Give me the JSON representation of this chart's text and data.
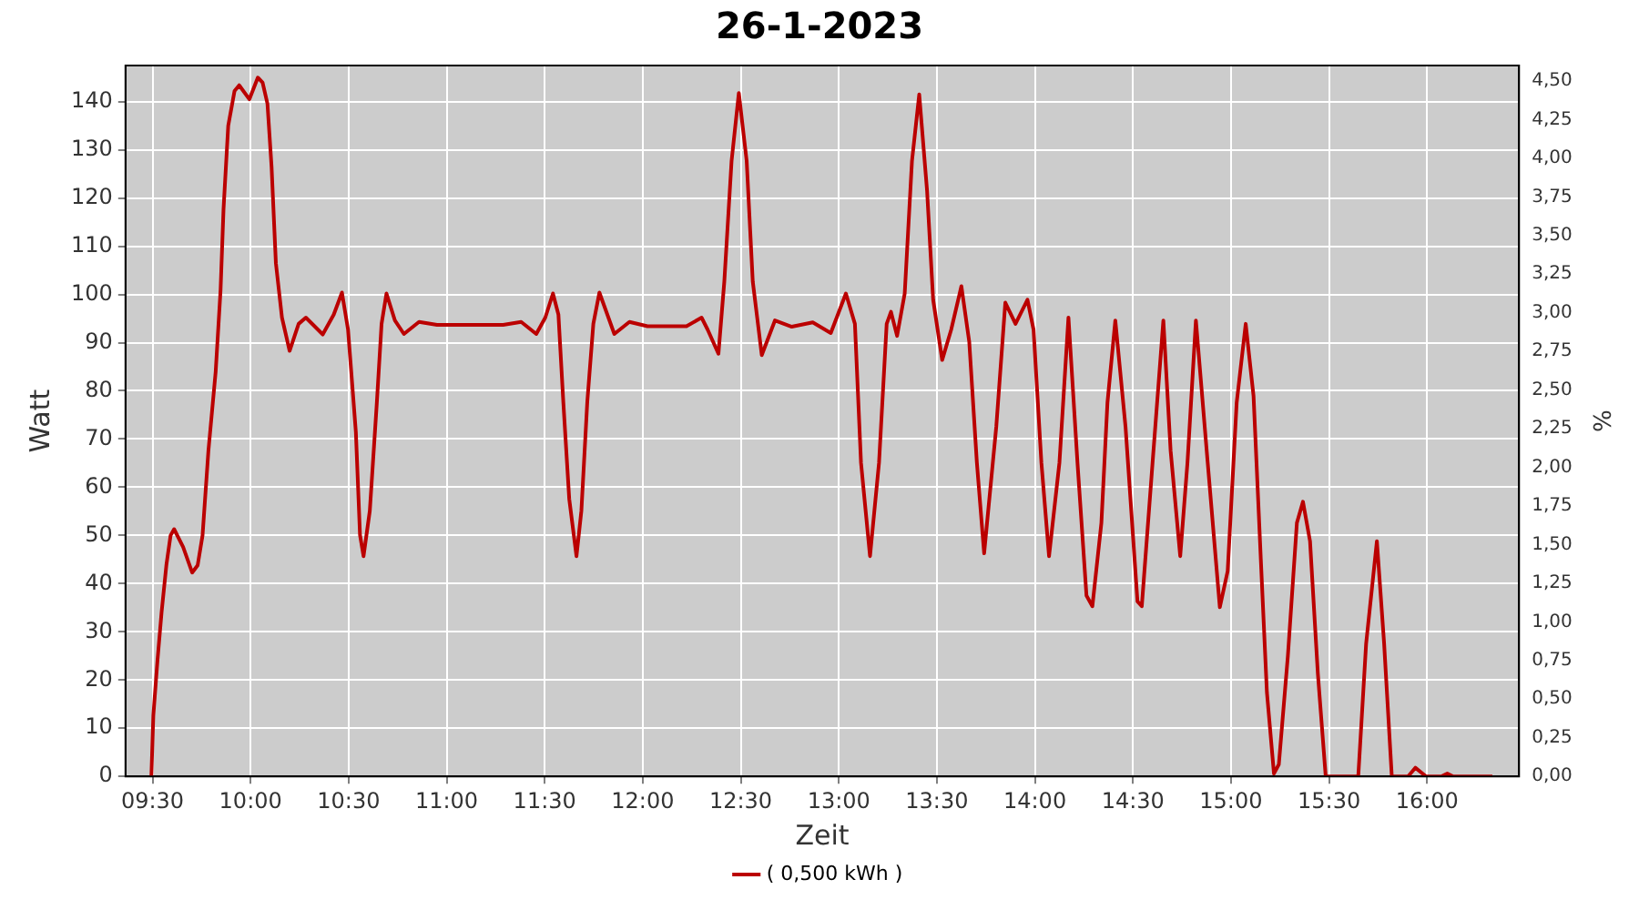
{
  "chart_data": {
    "type": "line",
    "title": "26-1-2023",
    "xlabel": "Zeit",
    "ylabel": "Watt",
    "y2label": "%",
    "xlim": [
      9.362,
      16.469
    ],
    "xticks": [
      {
        "value": 9.5,
        "label": "09:30"
      },
      {
        "value": 10,
        "label": "10:00"
      },
      {
        "value": 10.5,
        "label": "10:30"
      },
      {
        "value": 11,
        "label": "11:00"
      },
      {
        "value": 11.5,
        "label": "11:30"
      },
      {
        "value": 12,
        "label": "12:00"
      },
      {
        "value": 12.5,
        "label": "12:30"
      },
      {
        "value": 13,
        "label": "13:00"
      },
      {
        "value": 13.5,
        "label": "13:30"
      },
      {
        "value": 14,
        "label": "14:00"
      },
      {
        "value": 14.5,
        "label": "14:30"
      },
      {
        "value": 15,
        "label": "15:00"
      },
      {
        "value": 15.5,
        "label": "15:30"
      },
      {
        "value": 16,
        "label": "16:00"
      }
    ],
    "ylim": [
      0,
      147.5
    ],
    "yticks": [
      0,
      10,
      20,
      30,
      40,
      50,
      60,
      70,
      80,
      90,
      100,
      110,
      120,
      130,
      140
    ],
    "y2lim": [
      0,
      4.6
    ],
    "y2ticks": [
      {
        "value": 0,
        "label": "0,00"
      },
      {
        "value": 0.25,
        "label": "0,25"
      },
      {
        "value": 0.5,
        "label": "0,50"
      },
      {
        "value": 0.75,
        "label": "0,75"
      },
      {
        "value": 1,
        "label": "1,00"
      },
      {
        "value": 1.25,
        "label": "1,25"
      },
      {
        "value": 1.5,
        "label": "1,50"
      },
      {
        "value": 1.75,
        "label": "1,75"
      },
      {
        "value": 2,
        "label": "2,00"
      },
      {
        "value": 2.25,
        "label": "2,25"
      },
      {
        "value": 2.5,
        "label": "2,50"
      },
      {
        "value": 2.75,
        "label": "2,75"
      },
      {
        "value": 3,
        "label": "3,00"
      },
      {
        "value": 3.25,
        "label": "3,25"
      },
      {
        "value": 3.5,
        "label": "3,50"
      },
      {
        "value": 3.75,
        "label": "3,75"
      },
      {
        "value": 4,
        "label": "4,00"
      },
      {
        "value": 4.25,
        "label": "4,25"
      },
      {
        "value": 4.5,
        "label": "4,50"
      }
    ],
    "grid": true,
    "legend": "bottom",
    "marker": "none",
    "line_style": "solid",
    "series": [
      {
        "name": "( 0,500 kWh )",
        "color": "#bb0000",
        "x": [
          9.494,
          9.504,
          9.525,
          9.546,
          9.571,
          9.592,
          9.61,
          9.656,
          9.702,
          9.73,
          9.755,
          9.785,
          9.822,
          9.847,
          9.862,
          9.886,
          9.918,
          9.942,
          9.994,
          10.037,
          10.061,
          10.086,
          10.107,
          10.129,
          10.16,
          10.199,
          10.245,
          10.282,
          10.368,
          10.424,
          10.466,
          10.497,
          10.537,
          10.558,
          10.576,
          10.608,
          10.644,
          10.668,
          10.693,
          10.736,
          10.782,
          10.859,
          10.951,
          11.288,
          11.38,
          11.457,
          11.503,
          11.542,
          11.57,
          11.595,
          11.625,
          11.662,
          11.687,
          11.717,
          11.748,
          11.779,
          11.855,
          11.932,
          12.024,
          12.223,
          12.3,
          12.331,
          12.386,
          12.416,
          12.453,
          12.49,
          12.53,
          12.561,
          12.607,
          12.674,
          12.76,
          12.867,
          12.959,
          13.036,
          13.082,
          13.113,
          13.159,
          13.205,
          13.244,
          13.266,
          13.297,
          13.336,
          13.373,
          13.41,
          13.45,
          13.481,
          13.527,
          13.573,
          13.625,
          13.665,
          13.704,
          13.741,
          13.803,
          13.849,
          13.901,
          13.962,
          13.993,
          14.033,
          14.072,
          14.125,
          14.171,
          14.217,
          14.263,
          14.293,
          14.339,
          14.37,
          14.41,
          14.462,
          14.523,
          14.545,
          14.6,
          14.655,
          14.692,
          14.741,
          14.778,
          14.821,
          14.876,
          14.943,
          14.983,
          15.029,
          15.075,
          15.115,
          15.152,
          15.183,
          15.219,
          15.244,
          15.29,
          15.336,
          15.367,
          15.403,
          15.443,
          15.483,
          15.566,
          15.649,
          15.689,
          15.744,
          15.781,
          15.82,
          15.903,
          15.94,
          15.995,
          16.072,
          16.103,
          16.133,
          16.333
        ],
        "values": [
          0,
          12.6,
          24,
          34,
          44,
          50,
          51.3,
          47.6,
          42.3,
          43.8,
          50,
          67.6,
          84,
          101,
          117.7,
          135,
          142.2,
          143.4,
          140.5,
          145,
          144,
          139.6,
          126.5,
          106.5,
          95.2,
          88.3,
          93.9,
          95.2,
          91.7,
          95.8,
          100.4,
          92.7,
          71.4,
          50.1,
          45.7,
          55.1,
          77.6,
          93.9,
          100.2,
          94.6,
          91.8,
          94.3,
          93.7,
          93.7,
          94.3,
          91.8,
          95.2,
          100.2,
          95.8,
          77.6,
          57.6,
          45.7,
          55.1,
          77.6,
          93.9,
          100.4,
          91.8,
          94.3,
          93.4,
          93.4,
          95.2,
          92.7,
          87.7,
          102.7,
          127.7,
          141.8,
          127.7,
          102.7,
          87.4,
          94.6,
          93.3,
          94.2,
          92,
          100.2,
          93.9,
          65.1,
          45.7,
          65.1,
          93.9,
          96.4,
          91.4,
          100.2,
          127.7,
          141.5,
          121.5,
          98.9,
          86.4,
          92.7,
          101.7,
          90.2,
          65.1,
          46.3,
          72.6,
          98.3,
          93.9,
          98.9,
          92.7,
          65.1,
          45.7,
          65.1,
          95.2,
          65.1,
          37.5,
          35.3,
          52.6,
          77.6,
          94.6,
          72.6,
          36.3,
          35.3,
          65.1,
          94.6,
          67.6,
          45.7,
          65.1,
          94.6,
          67.6,
          35.1,
          42.6,
          77.6,
          93.9,
          78.9,
          45.1,
          17.5,
          0.6,
          2.5,
          25,
          52.6,
          57,
          48.8,
          21.3,
          0,
          0,
          0,
          27.5,
          48.8,
          27.5,
          0,
          0,
          1.8,
          0,
          0,
          0.6,
          0,
          0
        ]
      }
    ]
  }
}
